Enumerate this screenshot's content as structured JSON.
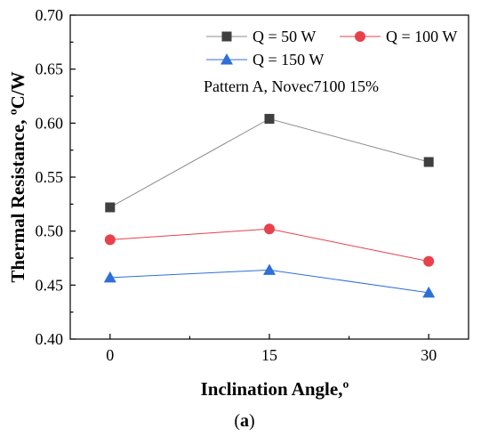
{
  "chart_data": {
    "type": "line",
    "x": [
      0,
      15,
      30
    ],
    "x_tick_labels": [
      "0",
      "15",
      "30"
    ],
    "xlabel": "Inclination Angle,º",
    "ylabel": "Thermal Resistance, ºC/W",
    "ylim": [
      0.4,
      0.7
    ],
    "y_ticks": [
      0.4,
      0.45,
      0.5,
      0.55,
      0.6,
      0.65,
      0.7
    ],
    "y_tick_labels": [
      "0.40",
      "0.45",
      "0.50",
      "0.55",
      "0.60",
      "0.65",
      "0.70"
    ],
    "grid": false,
    "legend_position": "top-right",
    "annotation": "Pattern A, Novec7100 15%",
    "caption_prefix": "(",
    "caption_letter": "a",
    "caption_suffix": ")",
    "series": [
      {
        "name": "Q = 50 W",
        "values": [
          0.522,
          0.604,
          0.564
        ],
        "color": "#3f3f3f",
        "line_color": "#8c8c8c",
        "marker": "square"
      },
      {
        "name": "Q = 100 W",
        "values": [
          0.492,
          0.502,
          0.472
        ],
        "color": "#e8414b",
        "line_color": "#e8414b",
        "marker": "circle"
      },
      {
        "name": "Q = 150 W",
        "values": [
          0.457,
          0.464,
          0.443
        ],
        "color": "#2e6fd8",
        "line_color": "#2e6fd8",
        "marker": "triangle"
      }
    ]
  }
}
